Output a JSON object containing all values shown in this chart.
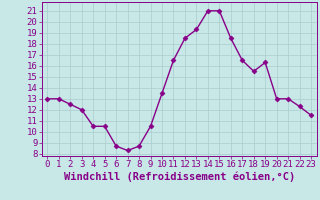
{
  "x": [
    0,
    1,
    2,
    3,
    4,
    5,
    6,
    7,
    8,
    9,
    10,
    11,
    12,
    13,
    14,
    15,
    16,
    17,
    18,
    19,
    20,
    21,
    22,
    23
  ],
  "y": [
    13.0,
    13.0,
    12.5,
    12.0,
    10.5,
    10.5,
    8.7,
    8.3,
    8.7,
    10.5,
    13.5,
    16.5,
    18.5,
    19.3,
    21.0,
    21.0,
    18.5,
    16.5,
    15.5,
    16.3,
    13.0,
    13.0,
    12.3,
    11.5
  ],
  "line_color": "#880088",
  "marker": "D",
  "marker_size": 2.5,
  "xlabel": "Windchill (Refroidissement éolien,°C)",
  "xlabel_fontsize": 7.5,
  "xlim": [
    -0.5,
    23.5
  ],
  "ylim": [
    7.8,
    21.8
  ],
  "yticks": [
    8,
    9,
    10,
    11,
    12,
    13,
    14,
    15,
    16,
    17,
    18,
    19,
    20,
    21
  ],
  "xticks": [
    0,
    1,
    2,
    3,
    4,
    5,
    6,
    7,
    8,
    9,
    10,
    11,
    12,
    13,
    14,
    15,
    16,
    17,
    18,
    19,
    20,
    21,
    22,
    23
  ],
  "grid_color": "#aacccc",
  "background_color": "#c8e8e8",
  "tick_color": "#880088",
  "tick_fontsize": 6.5,
  "linewidth": 1.0
}
